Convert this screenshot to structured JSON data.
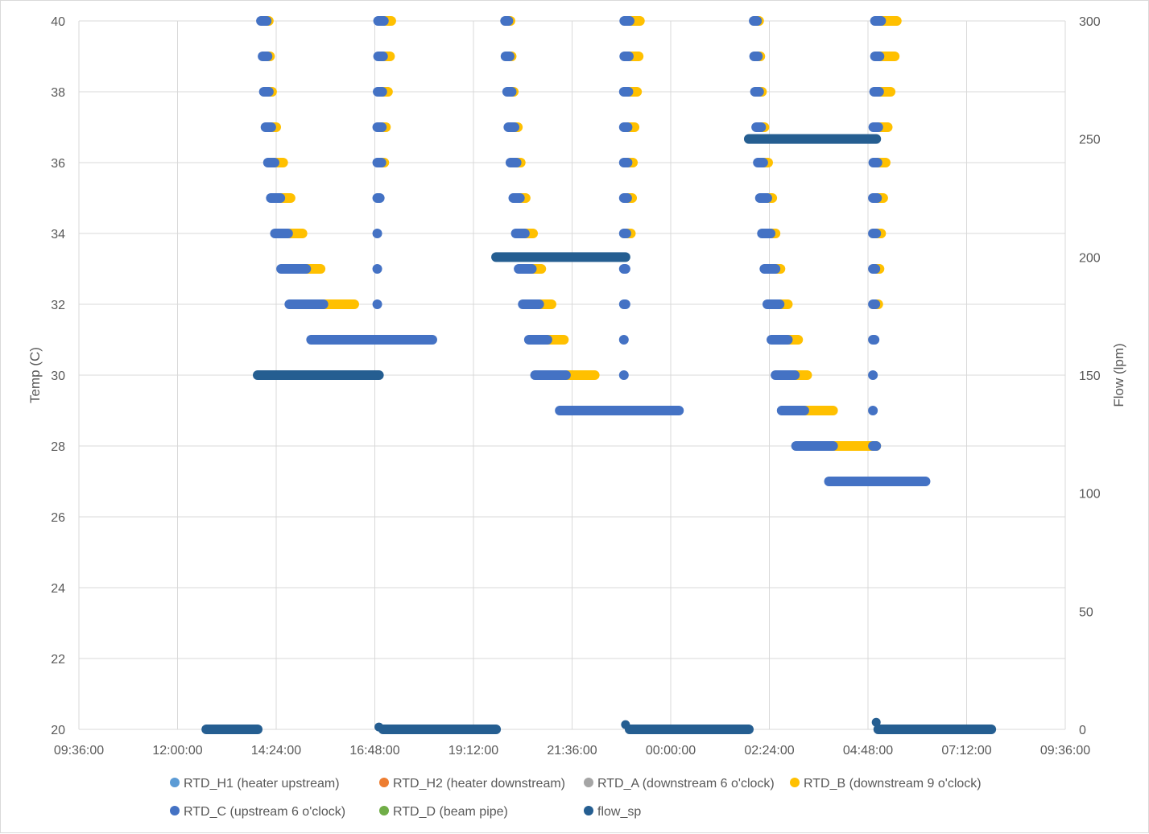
{
  "chart_data": {
    "type": "scatter",
    "xlabel": "",
    "ylabel": "Temp (C)",
    "y2label": "Flow (lpm)",
    "ylim": [
      20,
      40
    ],
    "y2lim": [
      0,
      300
    ],
    "yticks": [
      "20",
      "22",
      "24",
      "26",
      "28",
      "30",
      "32",
      "34",
      "36",
      "38",
      "40"
    ],
    "y2ticks": [
      "0",
      "50",
      "100",
      "150",
      "200",
      "250",
      "300"
    ],
    "xtick_labels": [
      "09:36:00",
      "12:00:00",
      "14:24:00",
      "16:48:00",
      "19:12:00",
      "21:36:00",
      "00:00:00",
      "02:24:00",
      "04:48:00",
      "07:12:00",
      "09:36:00"
    ],
    "grid": true,
    "legend_position": "bottom",
    "legend": [
      {
        "name": "RTD_H1 (heater upstream)",
        "color": "#5B9BD5"
      },
      {
        "name": "RTD_H2 (heater downstream)",
        "color": "#ED7D31"
      },
      {
        "name": "RTD_A (downstream 6 o'clock)",
        "color": "#A5A5A5"
      },
      {
        "name": "RTD_B (downstream 9 o'clock)",
        "color": "#FFC000"
      },
      {
        "name": "RTD_C (upstream 6 o'clock)",
        "color": "#4472C4"
      },
      {
        "name": "RTD_D (beam pipe)",
        "color": "#70AD47"
      },
      {
        "name": "flow_sp",
        "color": "#255E91"
      }
    ],
    "segments_temp": [
      {
        "series": "RTD_B",
        "y": 40,
        "x": [
          14.09,
          14.22
        ]
      },
      {
        "series": "RTD_C",
        "y": 40,
        "x": [
          14.03,
          14.17
        ]
      },
      {
        "series": "RTD_B",
        "y": 39,
        "x": [
          14.13,
          14.25
        ]
      },
      {
        "series": "RTD_C",
        "y": 39,
        "x": [
          14.07,
          14.19
        ]
      },
      {
        "series": "RTD_B",
        "y": 38,
        "x": [
          14.16,
          14.3
        ]
      },
      {
        "series": "RTD_C",
        "y": 38,
        "x": [
          14.1,
          14.22
        ]
      },
      {
        "series": "RTD_B",
        "y": 37,
        "x": [
          14.22,
          14.4
        ]
      },
      {
        "series": "RTD_C",
        "y": 37,
        "x": [
          14.14,
          14.28
        ]
      },
      {
        "series": "RTD_B",
        "y": 36,
        "x": [
          14.29,
          14.57
        ]
      },
      {
        "series": "RTD_C",
        "y": 36,
        "x": [
          14.2,
          14.36
        ]
      },
      {
        "series": "RTD_B",
        "y": 35,
        "x": [
          14.39,
          14.75
        ]
      },
      {
        "series": "RTD_C",
        "y": 35,
        "x": [
          14.27,
          14.5
        ]
      },
      {
        "series": "RTD_B",
        "y": 34,
        "x": [
          14.5,
          15.04
        ]
      },
      {
        "series": "RTD_C",
        "y": 34,
        "x": [
          14.37,
          14.69
        ]
      },
      {
        "series": "RTD_B",
        "y": 33,
        "x": [
          14.73,
          15.48
        ]
      },
      {
        "series": "RTD_C",
        "y": 33,
        "x": [
          14.52,
          15.13
        ]
      },
      {
        "series": "RTD_B",
        "y": 32,
        "x": [
          15.05,
          16.3
        ]
      },
      {
        "series": "RTD_C",
        "y": 32,
        "x": [
          14.72,
          15.55
        ]
      },
      {
        "series": "RTD_C",
        "y": 31,
        "x": [
          15.25,
          18.2
        ]
      },
      {
        "series": "RTD_B",
        "y": 40,
        "x": [
          16.95,
          17.2
        ]
      },
      {
        "series": "RTD_C",
        "y": 40,
        "x": [
          16.88,
          17.02
        ]
      },
      {
        "series": "RTD_B",
        "y": 39,
        "x": [
          16.95,
          17.17
        ]
      },
      {
        "series": "RTD_C",
        "y": 39,
        "x": [
          16.88,
          17.0
        ]
      },
      {
        "series": "RTD_B",
        "y": 38,
        "x": [
          16.93,
          17.12
        ]
      },
      {
        "series": "RTD_C",
        "y": 38,
        "x": [
          16.87,
          16.98
        ]
      },
      {
        "series": "RTD_B",
        "y": 37,
        "x": [
          16.92,
          17.07
        ]
      },
      {
        "series": "RTD_C",
        "y": 37,
        "x": [
          16.86,
          16.97
        ]
      },
      {
        "series": "RTD_B",
        "y": 36,
        "x": [
          16.92,
          17.03
        ]
      },
      {
        "series": "RTD_C",
        "y": 36,
        "x": [
          16.86,
          16.96
        ]
      },
      {
        "series": "RTD_C",
        "y": 35,
        "x": [
          16.86,
          16.92
        ]
      },
      {
        "series": "RTD_C",
        "y": 34,
        "x": [
          16.86,
          16.86
        ]
      },
      {
        "series": "RTD_C",
        "y": 33,
        "x": [
          16.86,
          16.86
        ]
      },
      {
        "series": "RTD_C",
        "y": 32,
        "x": [
          16.86,
          16.86
        ]
      },
      {
        "series": "RTD_B",
        "y": 40,
        "x": [
          20.0,
          20.1
        ]
      },
      {
        "series": "RTD_C",
        "y": 40,
        "x": [
          19.97,
          20.05
        ]
      },
      {
        "series": "RTD_B",
        "y": 39,
        "x": [
          20.02,
          20.13
        ]
      },
      {
        "series": "RTD_C",
        "y": 39,
        "x": [
          19.98,
          20.08
        ]
      },
      {
        "series": "RTD_B",
        "y": 38,
        "x": [
          20.07,
          20.18
        ]
      },
      {
        "series": "RTD_C",
        "y": 38,
        "x": [
          20.02,
          20.13
        ]
      },
      {
        "series": "RTD_B",
        "y": 37,
        "x": [
          20.11,
          20.28
        ]
      },
      {
        "series": "RTD_C",
        "y": 37,
        "x": [
          20.05,
          20.2
        ]
      },
      {
        "series": "RTD_B",
        "y": 36,
        "x": [
          20.18,
          20.35
        ]
      },
      {
        "series": "RTD_C",
        "y": 36,
        "x": [
          20.1,
          20.25
        ]
      },
      {
        "series": "RTD_B",
        "y": 35,
        "x": [
          20.25,
          20.47
        ]
      },
      {
        "series": "RTD_C",
        "y": 35,
        "x": [
          20.17,
          20.33
        ]
      },
      {
        "series": "RTD_B",
        "y": 34,
        "x": [
          20.34,
          20.65
        ]
      },
      {
        "series": "RTD_C",
        "y": 34,
        "x": [
          20.23,
          20.45
        ]
      },
      {
        "series": "RTD_B",
        "y": 33,
        "x": [
          20.42,
          20.85
        ]
      },
      {
        "series": "RTD_C",
        "y": 33,
        "x": [
          20.3,
          20.62
        ]
      },
      {
        "series": "RTD_B",
        "y": 32,
        "x": [
          20.55,
          21.1
        ]
      },
      {
        "series": "RTD_C",
        "y": 32,
        "x": [
          20.4,
          20.8
        ]
      },
      {
        "series": "RTD_B",
        "y": 31,
        "x": [
          20.7,
          21.4
        ]
      },
      {
        "series": "RTD_C",
        "y": 31,
        "x": [
          20.55,
          21.0
        ]
      },
      {
        "series": "RTD_B",
        "y": 30,
        "x": [
          20.88,
          22.15
        ]
      },
      {
        "series": "RTD_C",
        "y": 30,
        "x": [
          20.7,
          21.45
        ]
      },
      {
        "series": "RTD_C",
        "y": 29,
        "x": [
          21.3,
          24.2
        ]
      },
      {
        "series": "RTD_B",
        "y": 40,
        "x": [
          22.95,
          23.25
        ]
      },
      {
        "series": "RTD_C",
        "y": 40,
        "x": [
          22.87,
          23.0
        ]
      },
      {
        "series": "RTD_B",
        "y": 39,
        "x": [
          22.95,
          23.22
        ]
      },
      {
        "series": "RTD_C",
        "y": 39,
        "x": [
          22.87,
          22.98
        ]
      },
      {
        "series": "RTD_B",
        "y": 38,
        "x": [
          22.93,
          23.18
        ]
      },
      {
        "series": "RTD_C",
        "y": 38,
        "x": [
          22.86,
          22.97
        ]
      },
      {
        "series": "RTD_B",
        "y": 37,
        "x": [
          22.92,
          23.12
        ]
      },
      {
        "series": "RTD_C",
        "y": 37,
        "x": [
          22.86,
          22.95
        ]
      },
      {
        "series": "RTD_B",
        "y": 36,
        "x": [
          22.9,
          23.08
        ]
      },
      {
        "series": "RTD_C",
        "y": 36,
        "x": [
          22.86,
          22.95
        ]
      },
      {
        "series": "RTD_B",
        "y": 35,
        "x": [
          22.9,
          23.06
        ]
      },
      {
        "series": "RTD_C",
        "y": 35,
        "x": [
          22.86,
          22.94
        ]
      },
      {
        "series": "RTD_B",
        "y": 34,
        "x": [
          22.9,
          23.03
        ]
      },
      {
        "series": "RTD_C",
        "y": 34,
        "x": [
          22.86,
          22.92
        ]
      },
      {
        "series": "RTD_C",
        "y": 33,
        "x": [
          22.86,
          22.9
        ]
      },
      {
        "series": "RTD_C",
        "y": 32,
        "x": [
          22.86,
          22.9
        ]
      },
      {
        "series": "RTD_C",
        "y": 31,
        "x": [
          22.86,
          22.86
        ]
      },
      {
        "series": "RTD_C",
        "y": 30,
        "x": [
          22.86,
          22.86
        ]
      },
      {
        "series": "RTD_B",
        "y": 40,
        "x": [
          26.05,
          26.15
        ]
      },
      {
        "series": "RTD_C",
        "y": 40,
        "x": [
          26.02,
          26.1
        ]
      },
      {
        "series": "RTD_B",
        "y": 39,
        "x": [
          26.07,
          26.18
        ]
      },
      {
        "series": "RTD_C",
        "y": 39,
        "x": [
          26.03,
          26.12
        ]
      },
      {
        "series": "RTD_B",
        "y": 38,
        "x": [
          26.1,
          26.22
        ]
      },
      {
        "series": "RTD_C",
        "y": 38,
        "x": [
          26.05,
          26.15
        ]
      },
      {
        "series": "RTD_B",
        "y": 37,
        "x": [
          26.13,
          26.28
        ]
      },
      {
        "series": "RTD_C",
        "y": 37,
        "x": [
          26.08,
          26.2
        ]
      },
      {
        "series": "RTD_B",
        "y": 36,
        "x": [
          26.18,
          26.37
        ]
      },
      {
        "series": "RTD_C",
        "y": 36,
        "x": [
          26.12,
          26.25
        ]
      },
      {
        "series": "RTD_B",
        "y": 35,
        "x": [
          26.23,
          26.47
        ]
      },
      {
        "series": "RTD_C",
        "y": 35,
        "x": [
          26.17,
          26.35
        ]
      },
      {
        "series": "RTD_B",
        "y": 34,
        "x": [
          26.3,
          26.55
        ]
      },
      {
        "series": "RTD_C",
        "y": 34,
        "x": [
          26.22,
          26.43
        ]
      },
      {
        "series": "RTD_B",
        "y": 33,
        "x": [
          26.38,
          26.67
        ]
      },
      {
        "series": "RTD_C",
        "y": 33,
        "x": [
          26.28,
          26.55
        ]
      },
      {
        "series": "RTD_B",
        "y": 32,
        "x": [
          26.45,
          26.85
        ]
      },
      {
        "series": "RTD_C",
        "y": 32,
        "x": [
          26.35,
          26.65
        ]
      },
      {
        "series": "RTD_B",
        "y": 31,
        "x": [
          26.58,
          27.1
        ]
      },
      {
        "series": "RTD_C",
        "y": 31,
        "x": [
          26.45,
          26.85
        ]
      },
      {
        "series": "RTD_B",
        "y": 30,
        "x": [
          26.75,
          27.32
        ]
      },
      {
        "series": "RTD_C",
        "y": 30,
        "x": [
          26.55,
          27.02
        ]
      },
      {
        "series": "RTD_B",
        "y": 29,
        "x": [
          26.95,
          27.95
        ]
      },
      {
        "series": "RTD_C",
        "y": 29,
        "x": [
          26.7,
          27.25
        ]
      },
      {
        "series": "RTD_B",
        "y": 28,
        "x": [
          27.3,
          29.0
        ]
      },
      {
        "series": "RTD_C",
        "y": 28,
        "x": [
          27.05,
          27.95
        ]
      },
      {
        "series": "RTD_C",
        "y": 27,
        "x": [
          27.85,
          30.2
        ]
      },
      {
        "series": "RTD_B",
        "y": 40,
        "x": [
          29.05,
          29.5
        ]
      },
      {
        "series": "RTD_C",
        "y": 40,
        "x": [
          28.97,
          29.12
        ]
      },
      {
        "series": "RTD_B",
        "y": 39,
        "x": [
          29.05,
          29.45
        ]
      },
      {
        "series": "RTD_C",
        "y": 39,
        "x": [
          28.97,
          29.08
        ]
      },
      {
        "series": "RTD_B",
        "y": 38,
        "x": [
          29.02,
          29.35
        ]
      },
      {
        "series": "RTD_C",
        "y": 38,
        "x": [
          28.95,
          29.07
        ]
      },
      {
        "series": "RTD_B",
        "y": 37,
        "x": [
          29.0,
          29.28
        ]
      },
      {
        "series": "RTD_C",
        "y": 37,
        "x": [
          28.93,
          29.05
        ]
      },
      {
        "series": "RTD_B",
        "y": 36,
        "x": [
          29.0,
          29.23
        ]
      },
      {
        "series": "RTD_C",
        "y": 36,
        "x": [
          28.93,
          29.03
        ]
      },
      {
        "series": "RTD_B",
        "y": 35,
        "x": [
          28.98,
          29.17
        ]
      },
      {
        "series": "RTD_C",
        "y": 35,
        "x": [
          28.92,
          29.02
        ]
      },
      {
        "series": "RTD_B",
        "y": 34,
        "x": [
          28.96,
          29.12
        ]
      },
      {
        "series": "RTD_C",
        "y": 34,
        "x": [
          28.92,
          29.0
        ]
      },
      {
        "series": "RTD_B",
        "y": 33,
        "x": [
          28.96,
          29.08
        ]
      },
      {
        "series": "RTD_C",
        "y": 33,
        "x": [
          28.92,
          28.98
        ]
      },
      {
        "series": "RTD_B",
        "y": 32,
        "x": [
          28.96,
          29.05
        ]
      },
      {
        "series": "RTD_C",
        "y": 32,
        "x": [
          28.92,
          28.98
        ]
      },
      {
        "series": "RTD_C",
        "y": 31,
        "x": [
          28.92,
          28.96
        ]
      },
      {
        "series": "RTD_C",
        "y": 30,
        "x": [
          28.92,
          28.92
        ]
      },
      {
        "series": "RTD_C",
        "y": 29,
        "x": [
          28.92,
          28.92
        ]
      },
      {
        "series": "RTD_C",
        "y": 28,
        "x": [
          28.92,
          29.0
        ]
      }
    ],
    "segments_flow": [
      {
        "series": "flow_sp",
        "y": 0,
        "x": [
          12.7,
          13.95
        ]
      },
      {
        "series": "flow_sp",
        "y": 150,
        "x": [
          13.95,
          16.9
        ]
      },
      {
        "series": "flow_sp",
        "y": 0,
        "x": [
          17.0,
          19.75
        ]
      },
      {
        "series": "flow_sp",
        "y": 200,
        "x": [
          19.75,
          22.9
        ]
      },
      {
        "series": "flow_sp",
        "y": 0,
        "x": [
          23.0,
          25.9
        ]
      },
      {
        "series": "flow_sp",
        "y": 250,
        "x": [
          25.9,
          29.0
        ]
      },
      {
        "series": "flow_sp",
        "y": 0,
        "x": [
          29.05,
          31.8
        ]
      }
    ],
    "points_flow": [
      {
        "series": "flow_sp",
        "y": 1,
        "x": 16.9
      },
      {
        "series": "flow_sp",
        "y": 2,
        "x": 22.9
      },
      {
        "series": "flow_sp",
        "y": 3,
        "x": 29.0
      }
    ]
  }
}
